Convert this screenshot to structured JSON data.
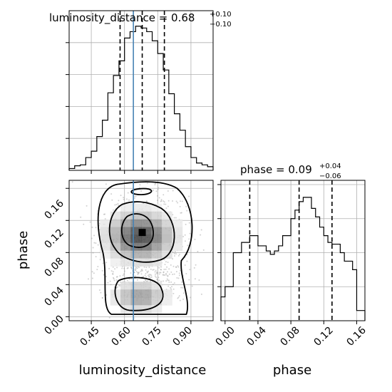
{
  "chart_data": {
    "type": "corner",
    "parameters": [
      "luminosity_distance",
      "phase"
    ],
    "truth": {
      "luminosity_distance": 0.64
    },
    "panels": [
      {
        "id": "luminosity_distance_hist",
        "type": "histogram",
        "title": {
          "text": "luminosity_distance = 0.68",
          "plus": "+0.10",
          "minus": "−0.10"
        },
        "bin_edges": [
          0.35,
          0.375,
          0.4,
          0.425,
          0.45,
          0.475,
          0.5,
          0.525,
          0.55,
          0.575,
          0.6,
          0.625,
          0.65,
          0.675,
          0.7,
          0.725,
          0.75,
          0.775,
          0.8,
          0.825,
          0.85,
          0.875,
          0.9,
          0.925,
          0.95,
          0.975,
          1.0
        ],
        "counts": [
          2,
          5,
          6,
          14,
          21,
          37,
          55,
          85,
          104,
          120,
          145,
          152,
          158,
          156,
          152,
          142,
          128,
          110,
          84,
          62,
          44,
          26,
          14,
          8,
          6,
          4
        ],
        "quantiles": [
          0.58,
          0.68,
          0.78
        ],
        "ymax": 175
      },
      {
        "id": "phase_hist",
        "type": "histogram",
        "title": {
          "text": "phase = 0.09",
          "plus": "+0.04",
          "minus": "−0.06"
        },
        "bin_edges": [
          -0.005,
          0.0,
          0.005,
          0.01,
          0.015,
          0.02,
          0.025,
          0.03,
          0.035,
          0.04,
          0.045,
          0.05,
          0.055,
          0.06,
          0.065,
          0.07,
          0.075,
          0.08,
          0.085,
          0.09,
          0.095,
          0.1,
          0.105,
          0.11,
          0.115,
          0.12,
          0.125,
          0.13,
          0.135,
          0.14,
          0.145,
          0.15,
          0.155,
          0.16,
          0.165,
          0.17
        ],
        "counts": [
          28,
          40,
          40,
          80,
          80,
          92,
          92,
          100,
          100,
          88,
          88,
          82,
          78,
          82,
          88,
          100,
          100,
          120,
          130,
          140,
          145,
          145,
          132,
          122,
          110,
          100,
          92,
          90,
          90,
          80,
          70,
          70,
          60,
          12,
          12
        ],
        "quantiles": [
          0.03,
          0.09,
          0.13
        ],
        "ymax": 165
      },
      {
        "id": "joint_2d",
        "type": "hist2d_contour",
        "xlabel": "luminosity_distance",
        "ylabel": "phase",
        "xlim": [
          0.35,
          1.0
        ],
        "ylim": [
          -0.005,
          0.17
        ],
        "density_peak": {
          "x": 0.68,
          "y": 0.105
        }
      }
    ],
    "x_ticks": {
      "luminosity_distance": [
        0.45,
        0.6,
        0.75,
        0.9
      ],
      "phase": [
        0.0,
        0.04,
        0.08,
        0.12,
        0.16
      ]
    },
    "y_ticks": {
      "phase": [
        0.0,
        0.04,
        0.08,
        0.12,
        0.16
      ]
    },
    "grid": true
  },
  "labels": {
    "xlabel_left": "luminosity_distance",
    "xlabel_right": "phase",
    "ylabel": "phase",
    "title1_main": "luminosity_distance = 0.68",
    "title1_plus": "+0.10",
    "title1_minus": "−0.10",
    "title2_main": "phase = 0.09",
    "title2_plus": "+0.04",
    "title2_minus": "−0.06"
  },
  "tick_labels": {
    "ld": [
      "0.45",
      "0.60",
      "0.75",
      "0.90"
    ],
    "phase": [
      "0.00",
      "0.04",
      "0.08",
      "0.12",
      "0.16"
    ]
  },
  "colors": {
    "truth": "#4682b4",
    "line": "#000000",
    "grid": "#b0b0b0"
  }
}
